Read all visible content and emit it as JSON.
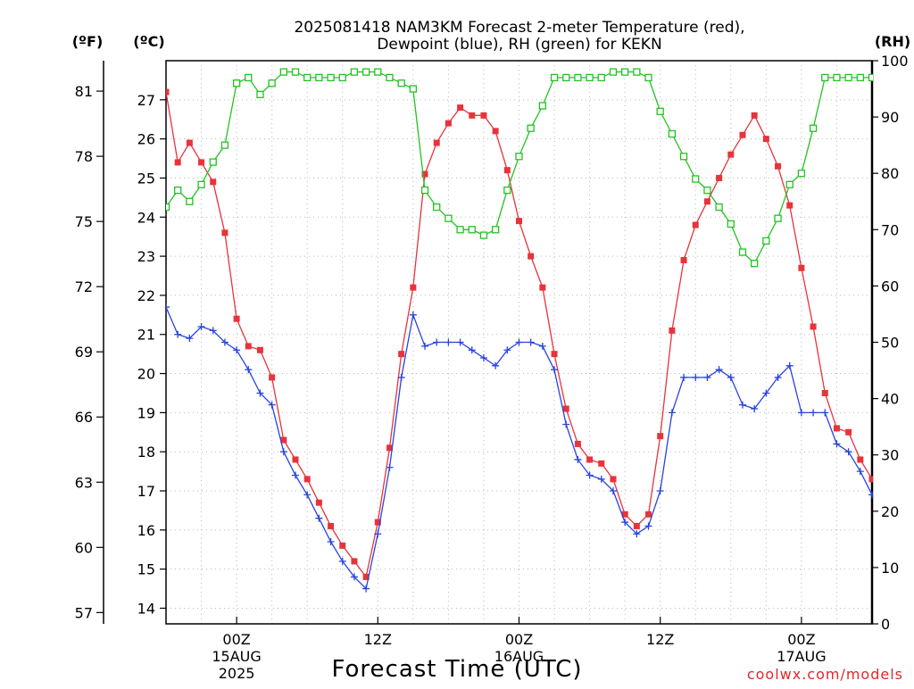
{
  "chart_data": {
    "type": "line",
    "title": "2025081418 NAM3KM Forecast 2-meter Temperature (red),",
    "subtitle": "Dewpoint (blue), RH (green) for KEKN",
    "xlabel": "Forecast Time (UTC)",
    "credit": "coolwx.com/models",
    "units": {
      "left_outer": "(ºF)",
      "left_inner": "(ºC)",
      "right": "(RH)"
    },
    "x_ticks": [
      {
        "hour": 6,
        "label": "00Z",
        "sub": "15AUG",
        "sub2": "2025"
      },
      {
        "hour": 18,
        "label": "12Z",
        "sub": "",
        "sub2": ""
      },
      {
        "hour": 30,
        "label": "00Z",
        "sub": "16AUG",
        "sub2": ""
      },
      {
        "hour": 42,
        "label": "12Z",
        "sub": "",
        "sub2": ""
      },
      {
        "hour": 54,
        "label": "00Z",
        "sub": "17AUG",
        "sub2": ""
      }
    ],
    "xlim": [
      0,
      60
    ],
    "ylim_c": [
      13.6,
      28.0
    ],
    "ylim_rh": [
      0,
      100
    ],
    "yticks_c": [
      14,
      15,
      16,
      17,
      18,
      19,
      20,
      21,
      22,
      23,
      24,
      25,
      26,
      27
    ],
    "yticks_f": [
      57,
      60,
      63,
      66,
      69,
      72,
      75,
      78,
      81
    ],
    "yticks_rh": [
      0,
      10,
      20,
      30,
      40,
      50,
      60,
      70,
      80,
      90,
      100
    ],
    "grid": true,
    "series": [
      {
        "color": "#e8333a",
        "marker": "filled-square",
        "axis": "c",
        "x": [
          0,
          1,
          2,
          3,
          4,
          5,
          6,
          7,
          8,
          9,
          10,
          11,
          12,
          13,
          14,
          15,
          16,
          17,
          18,
          19,
          20,
          21,
          22,
          23,
          24,
          25,
          26,
          27,
          28,
          29,
          30,
          31,
          32,
          33,
          34,
          35,
          36,
          37,
          38,
          39,
          40,
          41,
          42,
          43,
          44,
          45,
          46,
          47,
          48,
          49,
          50,
          51,
          52,
          53,
          54,
          55,
          56,
          57,
          58,
          59,
          60
        ],
        "values": [
          27.2,
          25.4,
          25.9,
          25.4,
          24.9,
          23.6,
          21.4,
          20.7,
          20.6,
          19.9,
          18.3,
          17.8,
          17.3,
          16.7,
          16.1,
          15.6,
          15.2,
          14.8,
          16.2,
          18.1,
          20.5,
          22.2,
          25.1,
          25.9,
          26.4,
          26.8,
          26.6,
          26.6,
          26.2,
          25.2,
          23.9,
          23.0,
          22.2,
          20.5,
          19.1,
          18.2,
          17.8,
          17.7,
          17.3,
          16.4,
          16.1,
          16.4,
          18.4,
          21.1,
          22.9,
          23.8,
          24.4,
          25.0,
          25.6,
          26.1,
          26.6,
          26.0,
          25.3,
          24.3,
          22.7,
          21.2,
          19.5,
          18.6,
          18.5,
          17.8,
          17.3
        ]
      },
      {
        "color": "#2843e0",
        "marker": "plus",
        "axis": "c",
        "x": [
          0,
          1,
          2,
          3,
          4,
          5,
          6,
          7,
          8,
          9,
          10,
          11,
          12,
          13,
          14,
          15,
          16,
          17,
          18,
          19,
          20,
          21,
          22,
          23,
          24,
          25,
          26,
          27,
          28,
          29,
          30,
          31,
          32,
          33,
          34,
          35,
          36,
          37,
          38,
          39,
          40,
          41,
          42,
          43,
          44,
          45,
          46,
          47,
          48,
          49,
          50,
          51,
          52,
          53,
          54,
          55,
          56,
          57,
          58,
          59,
          60
        ],
        "values": [
          21.7,
          21.0,
          20.9,
          21.2,
          21.1,
          20.8,
          20.6,
          20.1,
          19.5,
          19.2,
          18.0,
          17.4,
          16.9,
          16.3,
          15.7,
          15.2,
          14.8,
          14.5,
          15.9,
          17.6,
          19.9,
          21.5,
          20.7,
          20.8,
          20.8,
          20.8,
          20.6,
          20.4,
          20.2,
          20.6,
          20.8,
          20.8,
          20.7,
          20.1,
          18.7,
          17.8,
          17.4,
          17.3,
          17.0,
          16.2,
          15.9,
          16.1,
          17.0,
          19.0,
          19.9,
          19.9,
          19.9,
          20.1,
          19.9,
          19.2,
          19.1,
          19.5,
          19.9,
          20.2,
          19.0,
          19.0,
          19.0,
          18.2,
          18.0,
          17.5,
          16.9
        ]
      },
      {
        "color": "#22c322",
        "marker": "open-square",
        "axis": "rh",
        "x": [
          0,
          1,
          2,
          3,
          4,
          5,
          6,
          7,
          8,
          9,
          10,
          11,
          12,
          13,
          14,
          15,
          16,
          17,
          18,
          19,
          20,
          21,
          22,
          23,
          24,
          25,
          26,
          27,
          28,
          29,
          30,
          31,
          32,
          33,
          34,
          35,
          36,
          37,
          38,
          39,
          40,
          41,
          42,
          43,
          44,
          45,
          46,
          47,
          48,
          49,
          50,
          51,
          52,
          53,
          54,
          55,
          56,
          57,
          58,
          59,
          60
        ],
        "values": [
          74,
          77,
          75,
          78,
          82,
          85,
          96,
          97,
          94,
          96,
          98,
          98,
          97,
          97,
          97,
          97,
          98,
          98,
          98,
          97,
          96,
          95,
          77,
          74,
          72,
          70,
          70,
          69,
          70,
          77,
          83,
          88,
          92,
          97,
          97,
          97,
          97,
          97,
          98,
          98,
          98,
          97,
          91,
          87,
          83,
          79,
          77,
          74,
          71,
          66,
          64,
          68,
          72,
          78,
          80,
          88,
          97,
          97,
          97,
          97,
          97
        ]
      }
    ]
  }
}
